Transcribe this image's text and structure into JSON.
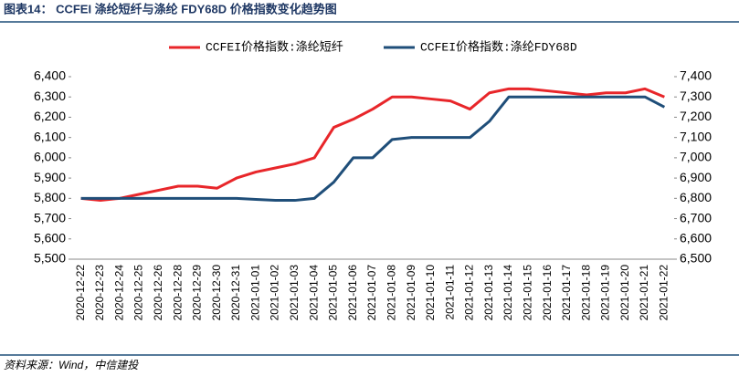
{
  "chart_data": {
    "type": "line",
    "title": "图表14： CCFEI 涤纶短纤与涤纶 FDY68D 价格指数变化趋势图",
    "source": "资料来源：Wind，中信建投",
    "categories": [
      "2020-12-22",
      "2020-12-23",
      "2020-12-24",
      "2020-12-25",
      "2020-12-26",
      "2020-12-28",
      "2020-12-29",
      "2020-12-30",
      "2020-12-31",
      "2021-01-01",
      "2021-01-02",
      "2021-01-03",
      "2021-01-04",
      "2021-01-05",
      "2021-01-06",
      "2021-01-07",
      "2021-01-08",
      "2021-01-09",
      "2021-01-10",
      "2021-01-11",
      "2021-01-12",
      "2021-01-13",
      "2021-01-14",
      "2021-01-15",
      "2021-01-16",
      "2021-01-17",
      "2021-01-18",
      "2021-01-19",
      "2021-01-20",
      "2021-01-21",
      "2021-01-22"
    ],
    "series": [
      {
        "name": "CCFEI价格指数:涤纶短纤",
        "color": "#e8262a",
        "values": [
          5800,
          5790,
          5800,
          5820,
          5840,
          5860,
          5860,
          5850,
          5900,
          5930,
          5950,
          5970,
          6000,
          6150,
          6190,
          6240,
          6300,
          6300,
          6290,
          6280,
          6240,
          6320,
          6340,
          6340,
          6330,
          6320,
          6310,
          6320,
          6320,
          6340,
          6300
        ]
      },
      {
        "name": "CCFEI价格指数:涤纶FDY68D",
        "color": "#1f4e79",
        "axis": "y2",
        "values": [
          6800,
          6800,
          6800,
          6800,
          6800,
          6800,
          6800,
          6800,
          6800,
          6795,
          6790,
          6790,
          6800,
          6880,
          7000,
          7000,
          7090,
          7100,
          7100,
          7100,
          7100,
          7180,
          7300,
          7300,
          7300,
          7300,
          7300,
          7300,
          7300,
          7300,
          7250
        ]
      }
    ],
    "ylim": [
      5500,
      6400
    ],
    "yticks": [
      {
        "value": 5500,
        "label": "5,500"
      },
      {
        "value": 5600,
        "label": "5,600"
      },
      {
        "value": 5700,
        "label": "5,700"
      },
      {
        "value": 5800,
        "label": "5,800"
      },
      {
        "value": 5900,
        "label": "5,900"
      },
      {
        "value": 6000,
        "label": "6,000"
      },
      {
        "value": 6100,
        "label": "6,100"
      },
      {
        "value": 6200,
        "label": "6,200"
      },
      {
        "value": 6300,
        "label": "6,300"
      },
      {
        "value": 6400,
        "label": "6,400"
      }
    ],
    "y2lim": [
      6500,
      7400
    ],
    "y2ticks": [
      {
        "value": 6500,
        "label": "6,500"
      },
      {
        "value": 6600,
        "label": "6,600"
      },
      {
        "value": 6700,
        "label": "6,700"
      },
      {
        "value": 6800,
        "label": "6,800"
      },
      {
        "value": 6900,
        "label": "6,900"
      },
      {
        "value": 7000,
        "label": "7,000"
      },
      {
        "value": 7100,
        "label": "7,100"
      },
      {
        "value": 7200,
        "label": "7,200"
      },
      {
        "value": 7300,
        "label": "7,300"
      },
      {
        "value": 7400,
        "label": "7,400"
      }
    ],
    "legend": "top"
  }
}
